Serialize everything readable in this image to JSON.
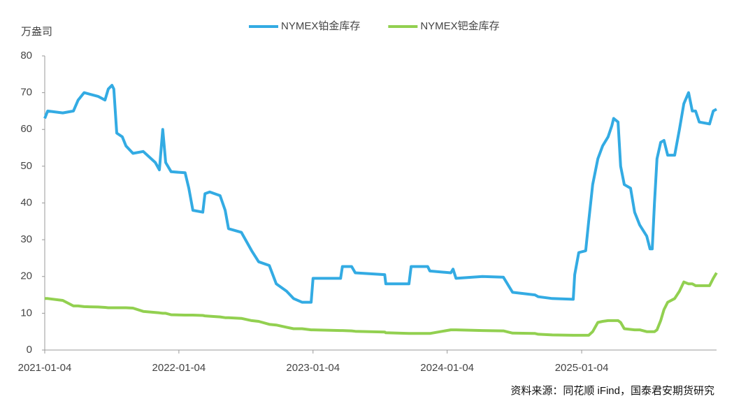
{
  "chart_data": {
    "type": "line",
    "y_label": "万盎司",
    "source": "资料来源：同花顺 iFind，国泰君安期货研究",
    "x": [
      "2021-01-04",
      "2021-01-12",
      "2021-02-22",
      "2021-03-23",
      "2021-04-05",
      "2021-04-21",
      "2021-05-29",
      "2021-06-17",
      "2021-06-26",
      "2021-07-06",
      "2021-07-11",
      "2021-07-19",
      "2021-08-03",
      "2021-08-13",
      "2021-09-01",
      "2021-09-29",
      "2021-11-01",
      "2021-11-12",
      "2021-11-21",
      "2021-11-29",
      "2021-12-14",
      "2022-01-21",
      "2022-01-31",
      "2022-02-11",
      "2022-03-10",
      "2022-03-16",
      "2022-03-29",
      "2022-04-26",
      "2022-05-10",
      "2022-05-19",
      "2022-06-23",
      "2022-07-21",
      "2022-08-09",
      "2022-09-07",
      "2022-09-26",
      "2022-10-24",
      "2022-11-12",
      "2022-12-05",
      "2022-12-30",
      "2023-01-04",
      "2023-03-20",
      "2023-03-25",
      "2023-04-19",
      "2023-04-29",
      "2023-07-18",
      "2023-07-21",
      "2023-09-22",
      "2023-09-28",
      "2023-11-12",
      "2023-11-18",
      "2024-01-14",
      "2024-01-20",
      "2024-01-28",
      "2024-04-09",
      "2024-06-05",
      "2024-06-30",
      "2024-08-30",
      "2024-09-08",
      "2024-10-16",
      "2024-12-12",
      "2024-12-16",
      "2024-12-27",
      "2025-01-15",
      "2025-01-23",
      "2025-02-03",
      "2025-02-17",
      "2025-03-02",
      "2025-03-17",
      "2025-03-27",
      "2025-04-01",
      "2025-04-13",
      "2025-04-20",
      "2025-04-30",
      "2025-05-17",
      "2025-05-28",
      "2025-06-11",
      "2025-06-30",
      "2025-07-09",
      "2025-07-15",
      "2025-07-21",
      "2025-07-28",
      "2025-08-07",
      "2025-08-16",
      "2025-08-26",
      "2025-09-14",
      "2025-09-27",
      "2025-10-09",
      "2025-10-22",
      "2025-11-01",
      "2025-11-10",
      "2025-11-20",
      "2025-12-18",
      "2025-12-28",
      "2026-01-06"
    ],
    "series": [
      {
        "name": "NYMEX铂金库存",
        "color": "#33abe3",
        "values": [
          63,
          65,
          64.5,
          65,
          68,
          70,
          69,
          68,
          71,
          72,
          71,
          59,
          58,
          55.5,
          53.5,
          54,
          51,
          49,
          60,
          51,
          48.5,
          48.2,
          44,
          38,
          37.5,
          42.5,
          43,
          42,
          38,
          33,
          32,
          27,
          24,
          23,
          18,
          16,
          14,
          13,
          13,
          19.5,
          19.5,
          22.7,
          22.7,
          21,
          20.5,
          18,
          18,
          22.7,
          22.7,
          21.5,
          21,
          22,
          19.5,
          20,
          19.8,
          15.7,
          15,
          14.5,
          14,
          13.8,
          20.5,
          26.5,
          27,
          35,
          45,
          52,
          55.5,
          58,
          61,
          63,
          62,
          50,
          45,
          44,
          37.5,
          34,
          31,
          27.5,
          27.5,
          40,
          52,
          56.5,
          57,
          53,
          53,
          60,
          67,
          70,
          65,
          65,
          62,
          61.5,
          65,
          65.5
        ]
      },
      {
        "name": "NYMEX钯金库存",
        "color": "#92d050",
        "values": [
          14,
          14,
          13.5,
          12,
          12,
          11.8,
          11.7,
          11.6,
          11.5,
          11.5,
          11.5,
          11.5,
          11.5,
          11.5,
          11.4,
          10.5,
          10.2,
          10.1,
          10,
          10,
          9.6,
          9.5,
          9.5,
          9.5,
          9.4,
          9.3,
          9.2,
          9,
          8.8,
          8.8,
          8.6,
          8,
          7.8,
          7,
          6.8,
          6.2,
          5.8,
          5.8,
          5.5,
          5.5,
          5.3,
          5.3,
          5.2,
          5.1,
          4.9,
          4.7,
          4.5,
          4.5,
          4.5,
          4.5,
          5.5,
          5.5,
          5.5,
          5.3,
          5.2,
          4.6,
          4.5,
          4.3,
          4.1,
          4,
          4,
          4,
          4,
          4,
          5,
          7.5,
          7.8,
          8,
          8,
          8,
          8,
          7.5,
          5.8,
          5.6,
          5.5,
          5.5,
          5,
          5,
          5,
          5,
          5.5,
          8,
          11,
          13,
          14,
          16,
          18.5,
          18,
          18,
          17.5,
          17.5,
          17.5,
          19.5,
          21
        ]
      }
    ],
    "xlim": [
      "2021-01-04",
      "2026-01-06"
    ],
    "xticks": [
      "2021-01-04",
      "2022-01-04",
      "2023-01-04",
      "2024-01-04",
      "2025-01-04"
    ],
    "ylim": [
      0,
      80
    ],
    "yticks": [
      0,
      10,
      20,
      30,
      40,
      50,
      60,
      70,
      80
    ],
    "grid": false,
    "legend": "top"
  }
}
